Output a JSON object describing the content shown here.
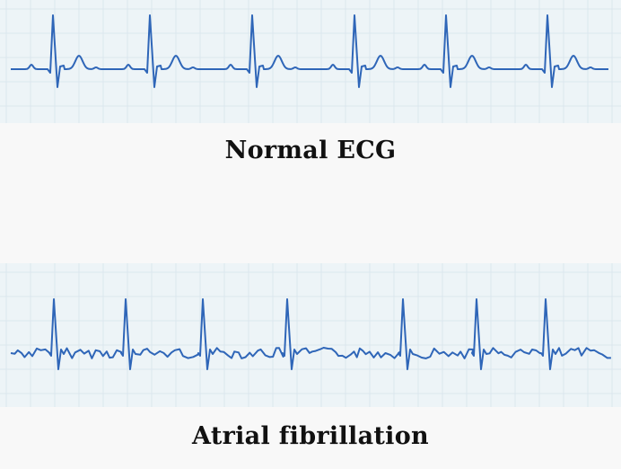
{
  "panels": [
    {
      "title": "Normal ECG",
      "rhythm": "normal"
    },
    {
      "title": "Atrial fibrillation",
      "rhythm": "atrial-fibrillation"
    }
  ],
  "colors": {
    "trace": "#2f66b8",
    "grid_background": "#edf4f7",
    "grid_lines": "#dbe7ee",
    "page_background": "#f8f8f8",
    "title": "#111111"
  }
}
